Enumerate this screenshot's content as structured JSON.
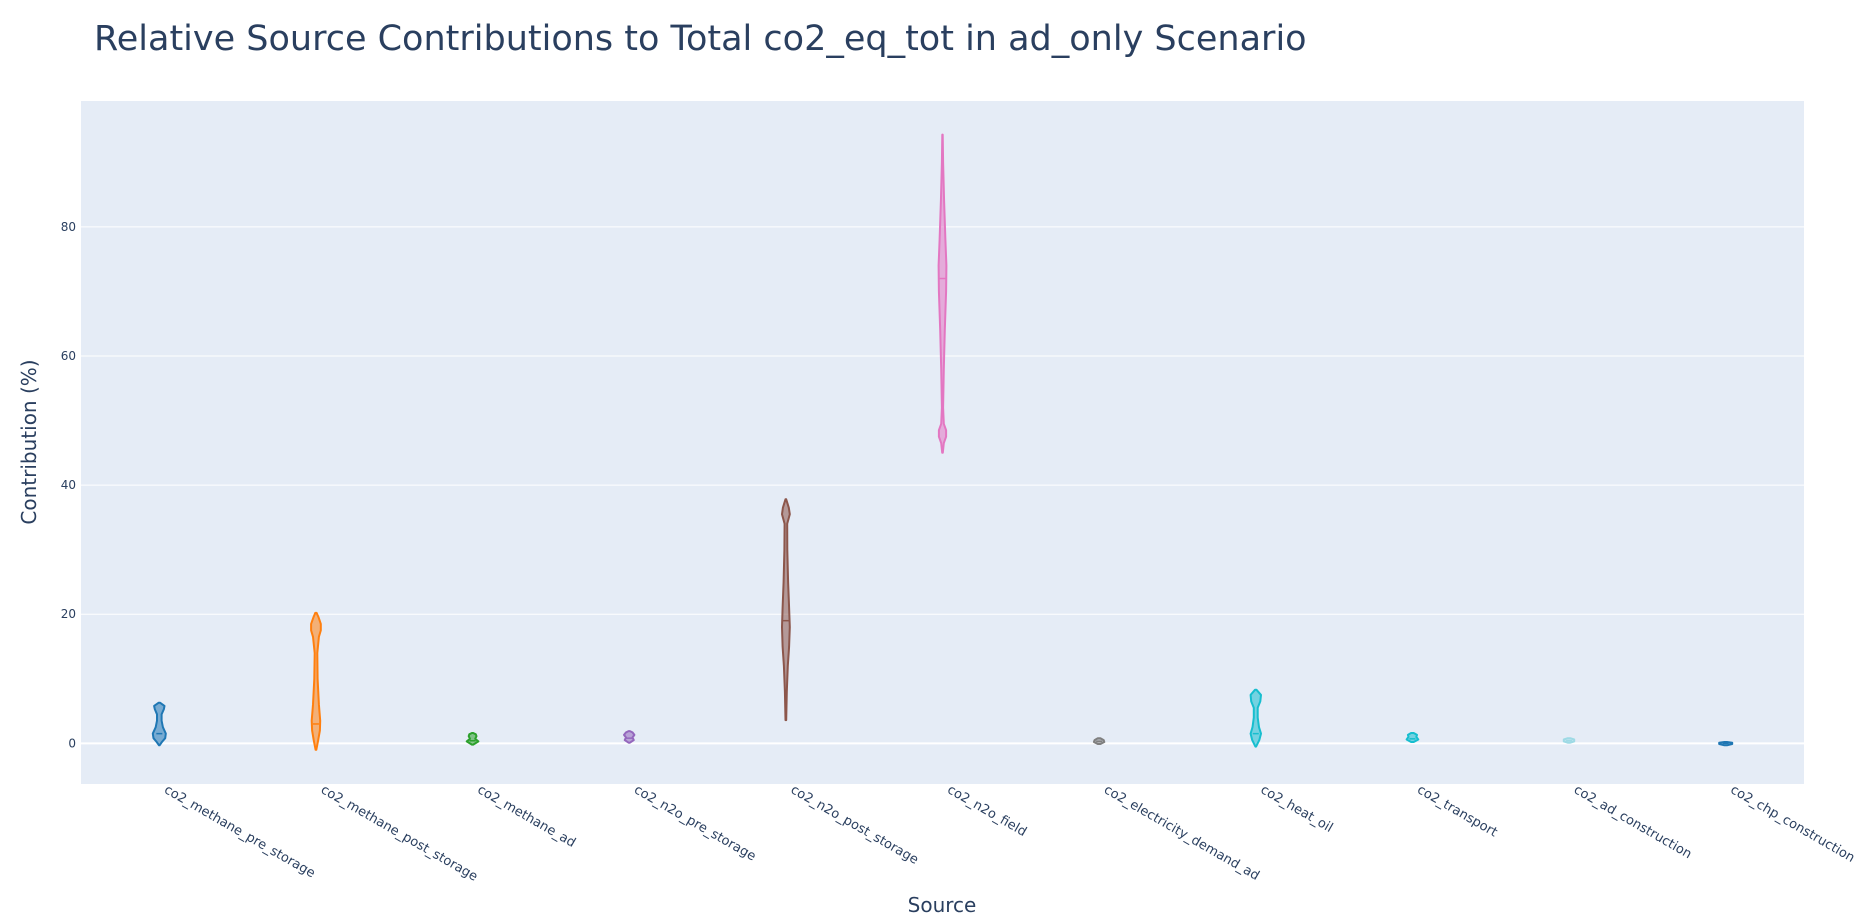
{
  "chart_data": {
    "type": "violin",
    "title": "Relative Source Contributions to Total co2_eq_tot in ad_only Scenario",
    "xlabel": "Source",
    "ylabel": "Contribution (%)",
    "ylim": [
      -6.3,
      99.5
    ],
    "yticks": [
      0,
      20,
      40,
      60,
      80
    ],
    "grid": true,
    "legend": "none",
    "series": [
      {
        "category": "co2_methane_pre_storage",
        "color": "#1f77b4",
        "min": -0.3,
        "max": 6.3,
        "median": 1.5,
        "profile": [
          [
            -0.3,
            0.05
          ],
          [
            0.2,
            0.4
          ],
          [
            0.8,
            0.9
          ],
          [
            1.5,
            1.0
          ],
          [
            2.5,
            0.55
          ],
          [
            3.5,
            0.35
          ],
          [
            4.5,
            0.35
          ],
          [
            5.3,
            0.7
          ],
          [
            5.8,
            0.8
          ],
          [
            6.3,
            0.1
          ]
        ]
      },
      {
        "category": "co2_methane_post_storage",
        "color": "#ff7f0e",
        "min": -1.0,
        "max": 20.2,
        "median": 3.0,
        "profile": [
          [
            -1.0,
            0.05
          ],
          [
            0.5,
            0.35
          ],
          [
            2.0,
            0.6
          ],
          [
            3.5,
            0.65
          ],
          [
            6.0,
            0.45
          ],
          [
            10.0,
            0.25
          ],
          [
            14.0,
            0.2
          ],
          [
            16.5,
            0.45
          ],
          [
            17.5,
            0.75
          ],
          [
            18.5,
            0.75
          ],
          [
            19.5,
            0.4
          ],
          [
            20.2,
            0.1
          ]
        ]
      },
      {
        "category": "co2_methane_ad",
        "color": "#2ca02c",
        "min": -0.2,
        "max": 1.6,
        "median": 0.4,
        "profile": [
          [
            -0.2,
            0.1
          ],
          [
            0.3,
            0.9
          ],
          [
            0.7,
            0.4
          ],
          [
            1.1,
            0.6
          ],
          [
            1.4,
            0.5
          ],
          [
            1.6,
            0.1
          ]
        ]
      },
      {
        "category": "co2_n2o_pre_storage",
        "color": "#9467bd",
        "min": 0.1,
        "max": 1.9,
        "median": 0.8,
        "profile": [
          [
            0.1,
            0.1
          ],
          [
            0.5,
            0.7
          ],
          [
            0.9,
            0.5
          ],
          [
            1.3,
            0.8
          ],
          [
            1.7,
            0.5
          ],
          [
            1.9,
            0.1
          ]
        ]
      },
      {
        "category": "co2_n2o_post_storage",
        "color": "#8c564b",
        "min": 3.6,
        "max": 37.8,
        "median": 19.0,
        "profile": [
          [
            3.6,
            0.05
          ],
          [
            8.0,
            0.15
          ],
          [
            12.0,
            0.3
          ],
          [
            15.0,
            0.5
          ],
          [
            18.0,
            0.6
          ],
          [
            21.0,
            0.5
          ],
          [
            25.0,
            0.35
          ],
          [
            30.0,
            0.22
          ],
          [
            34.0,
            0.2
          ],
          [
            35.5,
            0.6
          ],
          [
            36.5,
            0.45
          ],
          [
            37.8,
            0.05
          ]
        ]
      },
      {
        "category": "co2_n2o_field",
        "color": "#e377c2",
        "min": 45.0,
        "max": 94.3,
        "median": 72.0,
        "profile": [
          [
            45.0,
            0.05
          ],
          [
            46.5,
            0.2
          ],
          [
            47.5,
            0.55
          ],
          [
            48.5,
            0.55
          ],
          [
            49.5,
            0.2
          ],
          [
            52.0,
            0.1
          ],
          [
            58.0,
            0.2
          ],
          [
            64.0,
            0.35
          ],
          [
            70.0,
            0.55
          ],
          [
            74.0,
            0.6
          ],
          [
            78.0,
            0.45
          ],
          [
            84.0,
            0.25
          ],
          [
            90.0,
            0.1
          ],
          [
            94.3,
            0.03
          ]
        ]
      },
      {
        "category": "co2_electricity_demand_ad",
        "color": "#7f7f7f",
        "min": -0.1,
        "max": 0.8,
        "median": 0.3,
        "profile": [
          [
            -0.1,
            0.2
          ],
          [
            0.2,
            0.8
          ],
          [
            0.5,
            0.7
          ],
          [
            0.8,
            0.2
          ]
        ]
      },
      {
        "category": "co2_heat_oil",
        "color": "#17becf",
        "min": -0.5,
        "max": 8.3,
        "median": 1.5,
        "profile": [
          [
            -0.5,
            0.05
          ],
          [
            0.5,
            0.55
          ],
          [
            1.5,
            0.8
          ],
          [
            2.5,
            0.5
          ],
          [
            4.0,
            0.3
          ],
          [
            5.5,
            0.3
          ],
          [
            6.5,
            0.7
          ],
          [
            7.5,
            0.8
          ],
          [
            8.3,
            0.1
          ]
        ]
      },
      {
        "category": "co2_transport",
        "color": "#17becf",
        "min": 0.2,
        "max": 1.6,
        "median": 0.7,
        "profile": [
          [
            0.2,
            0.2
          ],
          [
            0.6,
            0.9
          ],
          [
            1.0,
            0.6
          ],
          [
            1.3,
            0.7
          ],
          [
            1.6,
            0.2
          ]
        ]
      },
      {
        "category": "co2_ad_construction",
        "color": "#9edae5",
        "min": 0.1,
        "max": 0.8,
        "median": 0.4,
        "profile": [
          [
            0.1,
            0.2
          ],
          [
            0.3,
            0.8
          ],
          [
            0.6,
            0.8
          ],
          [
            0.8,
            0.2
          ]
        ]
      },
      {
        "category": "co2_chp_construction",
        "color": "#1f77b4",
        "min": -0.3,
        "max": 0.2,
        "median": 0.0,
        "profile": [
          [
            -0.3,
            0.2
          ],
          [
            -0.1,
            1.0
          ],
          [
            0.1,
            1.0
          ],
          [
            0.2,
            0.2
          ]
        ]
      }
    ]
  }
}
